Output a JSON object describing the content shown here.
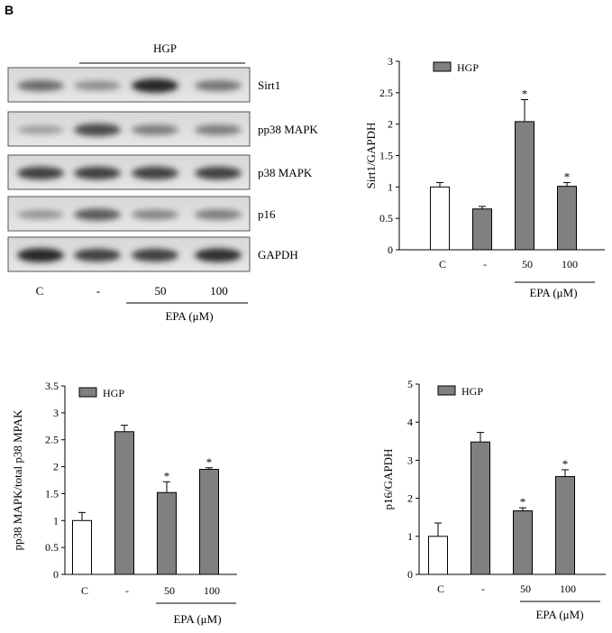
{
  "panel_label": "B",
  "blot": {
    "hgp_label": "HGP",
    "bands": [
      "Sirt1",
      "pp38 MAPK",
      "p38 MAPK",
      "p16",
      "GAPDH"
    ],
    "lanes": [
      "C",
      "-",
      "50",
      "100"
    ],
    "treatment_label": "EPA (μM)"
  },
  "chart_data": [
    {
      "type": "bar",
      "ylabel": "Sirt1/GAPDH",
      "categories": [
        "C",
        "-",
        "50",
        "100"
      ],
      "values": [
        1.0,
        0.65,
        2.04,
        1.01
      ],
      "errors": [
        0.07,
        0.04,
        0.35,
        0.06
      ],
      "significance": [
        "",
        "",
        "*",
        "*"
      ],
      "ylim": [
        0,
        3
      ],
      "yticks": [
        "0",
        "0.5",
        "1",
        "1.5",
        "2",
        "2.5",
        "3"
      ],
      "legend": "HGP",
      "xlabel": "EPA (μM)",
      "colors": [
        "#ffffff",
        "#808080",
        "#808080",
        "#808080"
      ]
    },
    {
      "type": "bar",
      "ylabel": "pp38 MAPK/total p38 MPAK",
      "categories": [
        "C",
        "-",
        "50",
        "100"
      ],
      "values": [
        1.0,
        2.65,
        1.52,
        1.95
      ],
      "errors": [
        0.15,
        0.12,
        0.2,
        0.03
      ],
      "significance": [
        "",
        "",
        "*",
        "*"
      ],
      "ylim": [
        0,
        3.5
      ],
      "yticks": [
        "0",
        "0.5",
        "1",
        "1.5",
        "2",
        "2.5",
        "3",
        "3.5"
      ],
      "legend": "HGP",
      "xlabel": "EPA (μM)",
      "colors": [
        "#ffffff",
        "#808080",
        "#808080",
        "#808080"
      ]
    },
    {
      "type": "bar",
      "ylabel": "p16/GAPDH",
      "categories": [
        "C",
        "-",
        "50",
        "100"
      ],
      "values": [
        1.0,
        3.48,
        1.67,
        2.57
      ],
      "errors": [
        0.35,
        0.25,
        0.08,
        0.18
      ],
      "significance": [
        "",
        "",
        "*",
        "*"
      ],
      "ylim": [
        0,
        5
      ],
      "yticks": [
        "0",
        "1",
        "2",
        "3",
        "4",
        "5"
      ],
      "legend": "HGP",
      "xlabel": "EPA (μM)",
      "colors": [
        "#ffffff",
        "#808080",
        "#808080",
        "#808080"
      ]
    }
  ]
}
